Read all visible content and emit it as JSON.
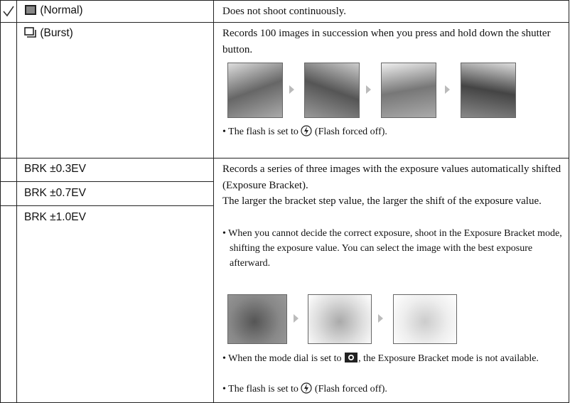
{
  "table": {
    "rows": [
      {
        "mode": "(Normal)",
        "description": "Does not shoot continuously."
      },
      {
        "mode": "(Burst)",
        "description": "Records 100 images in succession when you press and hold down the shutter button.",
        "notes": [
          {
            "before": "• The flash is set to",
            "after": "(Flash forced off)."
          }
        ]
      },
      {
        "modes": [
          "BRK ±0.3EV",
          "BRK ±0.7EV",
          "BRK ±1.0EV"
        ],
        "description": [
          "Records a series of three images with the exposure values automatically shifted (Exposure Bracket).",
          "The larger the bracket step value, the larger the shift of the exposure value."
        ],
        "notes": [
          {
            "text": "• When you cannot decide the correct exposure, shoot in the Exposure Bracket mode, shifting the exposure value. You can select the image with the best exposure afterward."
          },
          {
            "before": "• When the mode dial is set to",
            "after": ", the Exposure Bracket mode is not available."
          },
          {
            "before": "• The flash is set to",
            "after": "(Flash forced off)."
          }
        ]
      }
    ]
  }
}
